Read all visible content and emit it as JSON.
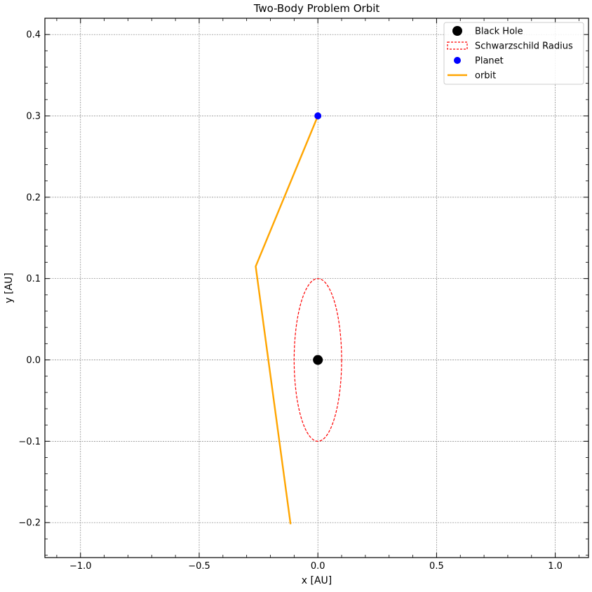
{
  "chart_data": {
    "type": "line",
    "title": "Two-Body Problem Orbit",
    "xlabel": "x [AU]",
    "ylabel": "y [AU]",
    "xlim": [
      -1.15,
      1.14
    ],
    "ylim": [
      -0.243,
      0.42
    ],
    "xticks": [
      {
        "value": -1.0,
        "label": "−1.0"
      },
      {
        "value": -0.5,
        "label": "−0.5"
      },
      {
        "value": 0.0,
        "label": "0.0"
      },
      {
        "value": 0.5,
        "label": "0.5"
      },
      {
        "value": 1.0,
        "label": "1.0"
      }
    ],
    "yticks": [
      {
        "value": -0.2,
        "label": "−0.2"
      },
      {
        "value": -0.1,
        "label": "−0.1"
      },
      {
        "value": 0.0,
        "label": "0.0"
      },
      {
        "value": 0.1,
        "label": "0.1"
      },
      {
        "value": 0.2,
        "label": "0.2"
      },
      {
        "value": 0.3,
        "label": "0.3"
      },
      {
        "value": 0.4,
        "label": "0.4"
      }
    ],
    "grid": true,
    "legend_position": "top-right",
    "series": [
      {
        "name": "Black Hole",
        "kind": "point",
        "color": "#000000",
        "x": [
          0.0
        ],
        "y": [
          0.0
        ]
      },
      {
        "name": "Schwarzschild Radius",
        "kind": "circle",
        "color": "#ff0000",
        "center": [
          0.0,
          0.0
        ],
        "radius": 0.1,
        "linestyle": "dashed"
      },
      {
        "name": "Planet",
        "kind": "point",
        "color": "#0000ff",
        "x": [
          0.0
        ],
        "y": [
          0.3
        ]
      },
      {
        "name": "orbit",
        "kind": "line",
        "color": "#ffa500",
        "x": [
          0.0,
          -0.262,
          -0.115
        ],
        "y": [
          0.3,
          0.115,
          -0.202
        ]
      }
    ]
  }
}
